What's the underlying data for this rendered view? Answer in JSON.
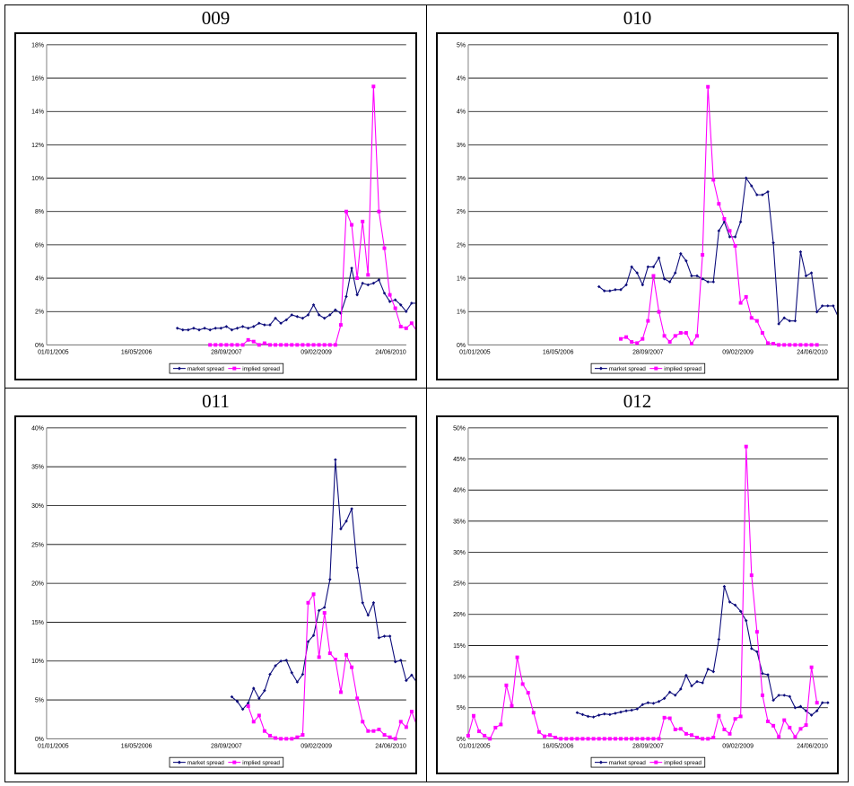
{
  "legend": {
    "market_label": "market spread",
    "implied_label": "implied spread"
  },
  "colors": {
    "market": "#0b0b7a",
    "implied": "#ff00ff",
    "gridline": "#000000"
  },
  "chart_data": [
    {
      "type": "line",
      "title": "009",
      "ylim": [
        0,
        18
      ],
      "yticks": [
        "0%",
        "2%",
        "4%",
        "6%",
        "8%",
        "10%",
        "12%",
        "14%",
        "16%",
        "18%"
      ],
      "xticks": [
        "01/01/2005",
        "16/05/2006",
        "28/09/2007",
        "09/02/2009",
        "24/06/2010"
      ],
      "xlim": [
        0,
        66
      ],
      "series": [
        {
          "name": "market spread",
          "color": "#0b0b7a",
          "marker": "diamond",
          "x_start": 24,
          "x_step": 1,
          "values": [
            1.0,
            0.9,
            0.9,
            1.0,
            0.9,
            1.0,
            0.9,
            1.0,
            1.0,
            1.1,
            0.9,
            1.0,
            1.1,
            1.0,
            1.1,
            1.3,
            1.2,
            1.2,
            1.6,
            1.3,
            1.5,
            1.8,
            1.7,
            1.6,
            1.8,
            2.4,
            1.8,
            1.6,
            1.8,
            2.1,
            1.9,
            2.9,
            4.6,
            3.0,
            3.7,
            3.6,
            3.7,
            3.9,
            3.1,
            2.6,
            2.7,
            2.4,
            2.0,
            2.5,
            2.5,
            2.7,
            2.3,
            2.2,
            2.2,
            2.0,
            2.5,
            2.6,
            2.8
          ]
        },
        {
          "name": "implied spread",
          "color": "#ff00ff",
          "marker": "square",
          "x_start": 30,
          "x_step": 1,
          "values": [
            0.0,
            0.0,
            0.0,
            0.0,
            0.0,
            0.0,
            0.0,
            0.3,
            0.2,
            0.0,
            0.1,
            0.0,
            0.0,
            0.0,
            0.0,
            0.0,
            0.0,
            0.0,
            0.0,
            0.0,
            0.0,
            0.0,
            0.0,
            0.0,
            1.2,
            8.0,
            7.2,
            4.0,
            7.4,
            4.2,
            15.5,
            8.0,
            5.8,
            3.0,
            2.2,
            1.1,
            1.0,
            1.3,
            0.8,
            1.0,
            0.7,
            1.1,
            1.9,
            1.1
          ]
        }
      ]
    },
    {
      "type": "line",
      "title": "010",
      "ylim": [
        0,
        5
      ],
      "yticks": [
        "0%",
        "1%",
        "1%",
        "2%",
        "2%",
        "3%",
        "3%",
        "4%",
        "4%",
        "5%"
      ],
      "xticks": [
        "01/01/2005",
        "16/05/2006",
        "28/09/2007",
        "09/02/2009",
        "24/06/2010"
      ],
      "xlim": [
        0,
        66
      ],
      "series": [
        {
          "name": "market spread",
          "color": "#0b0b7a",
          "marker": "diamond",
          "x_start": 24,
          "x_step": 1,
          "values": [
            0.97,
            0.9,
            0.9,
            0.92,
            0.92,
            1.0,
            1.3,
            1.2,
            1.0,
            1.3,
            1.3,
            1.45,
            1.1,
            1.05,
            1.2,
            1.52,
            1.4,
            1.15,
            1.15,
            1.1,
            1.05,
            1.05,
            1.9,
            2.05,
            1.8,
            1.8,
            2.05,
            2.78,
            2.65,
            2.5,
            2.5,
            2.55,
            1.7,
            0.35,
            0.45,
            0.4,
            0.4,
            1.55,
            1.15,
            1.2,
            0.55,
            0.65,
            0.65,
            0.65,
            0.45,
            0.6,
            0.88
          ]
        },
        {
          "name": "implied spread",
          "color": "#ff00ff",
          "marker": "square",
          "x_start": 28,
          "x_step": 1,
          "values": [
            0.1,
            0.13,
            0.05,
            0.03,
            0.1,
            0.4,
            1.15,
            0.55,
            0.15,
            0.05,
            0.15,
            0.2,
            0.2,
            0.02,
            0.15,
            1.5,
            4.3,
            2.75,
            2.35,
            2.1,
            1.9,
            1.65,
            0.7,
            0.8,
            0.45,
            0.4,
            0.2,
            0.03,
            0.02,
            0.0,
            0.0,
            0.0,
            0.0,
            0.0,
            0.0,
            0.0,
            0.0
          ]
        }
      ]
    },
    {
      "type": "line",
      "title": "011",
      "ylim": [
        0,
        40
      ],
      "yticks": [
        "0%",
        "5%",
        "10%",
        "15%",
        "20%",
        "25%",
        "30%",
        "35%",
        "40%"
      ],
      "xticks": [
        "01/01/2005",
        "16/05/2006",
        "28/09/2007",
        "09/02/2009",
        "24/06/2010"
      ],
      "xlim": [
        0,
        66
      ],
      "series": [
        {
          "name": "market spread",
          "color": "#0b0b7a",
          "marker": "diamond",
          "x_start": 34,
          "x_step": 1,
          "values": [
            5.4,
            4.8,
            3.8,
            4.6,
            6.5,
            5.2,
            6.2,
            8.3,
            9.4,
            10.0,
            10.1,
            8.5,
            7.3,
            8.3,
            12.5,
            13.3,
            16.5,
            16.9,
            20.5,
            35.9,
            27.0,
            28.0,
            29.6,
            22.0,
            17.5,
            15.9,
            17.5,
            13.0,
            13.2,
            13.2,
            9.9,
            10.1,
            7.5,
            8.2,
            7.2,
            6.7,
            7.5,
            8.2
          ]
        },
        {
          "name": "implied spread",
          "color": "#ff00ff",
          "marker": "square",
          "x_start": 37,
          "x_step": 1,
          "values": [
            4.2,
            2.2,
            3.0,
            1.0,
            0.4,
            0.1,
            0.0,
            0.0,
            0.0,
            0.2,
            0.5,
            17.5,
            18.6,
            10.5,
            16.2,
            11.0,
            10.2,
            6.0,
            10.8,
            9.2,
            5.2,
            2.2,
            1.0,
            1.0,
            1.2,
            0.5,
            0.2,
            0.0,
            2.2,
            1.5,
            3.5,
            1.6
          ]
        }
      ]
    },
    {
      "type": "line",
      "title": "012",
      "ylim": [
        0,
        50
      ],
      "yticks": [
        "0%",
        "5%",
        "10%",
        "15%",
        "20%",
        "25%",
        "30%",
        "35%",
        "40%",
        "45%",
        "50%"
      ],
      "xticks": [
        "01/01/2005",
        "16/05/2006",
        "28/09/2007",
        "09/02/2009",
        "24/06/2010"
      ],
      "xlim": [
        0,
        66
      ],
      "series": [
        {
          "name": "market spread",
          "color": "#0b0b7a",
          "marker": "diamond",
          "x_start": 20,
          "x_step": 1,
          "values": [
            4.2,
            3.9,
            3.6,
            3.5,
            3.8,
            4.0,
            3.9,
            4.1,
            4.3,
            4.5,
            4.6,
            4.8,
            5.5,
            5.8,
            5.7,
            6.0,
            6.5,
            7.5,
            7.0,
            8.0,
            10.2,
            8.5,
            9.2,
            9.0,
            11.2,
            10.8,
            16.0,
            24.5,
            22.0,
            21.5,
            20.5,
            19.0,
            14.5,
            14.0,
            10.5,
            10.3,
            6.2,
            7.0,
            7.0,
            6.8,
            5.0,
            5.2,
            4.5,
            3.8,
            4.5,
            5.8,
            5.8
          ]
        },
        {
          "name": "implied spread",
          "color": "#ff00ff",
          "marker": "square",
          "x_start": 0,
          "x_step": 1,
          "values": [
            0.5,
            3.7,
            1.2,
            0.5,
            0.0,
            1.8,
            2.3,
            8.6,
            5.3,
            13.1,
            8.8,
            7.4,
            4.2,
            1.1,
            0.4,
            0.6,
            0.2,
            0.0,
            0.0,
            0.0,
            0.0,
            0.0,
            0.0,
            0.0,
            0.0,
            0.0,
            0.0,
            0.0,
            0.0,
            0.0,
            0.0,
            0.0,
            0.0,
            0.0,
            0.0,
            0.0,
            3.4,
            3.3,
            1.5,
            1.6,
            0.8,
            0.6,
            0.2,
            0.0,
            0.0,
            0.2,
            3.7,
            1.5,
            0.8,
            3.2,
            3.6,
            47.0,
            26.3,
            17.2,
            7.0,
            2.8,
            2.1,
            0.3,
            3.0,
            1.8,
            0.3,
            1.6,
            2.2,
            11.5,
            5.8
          ]
        }
      ]
    }
  ]
}
